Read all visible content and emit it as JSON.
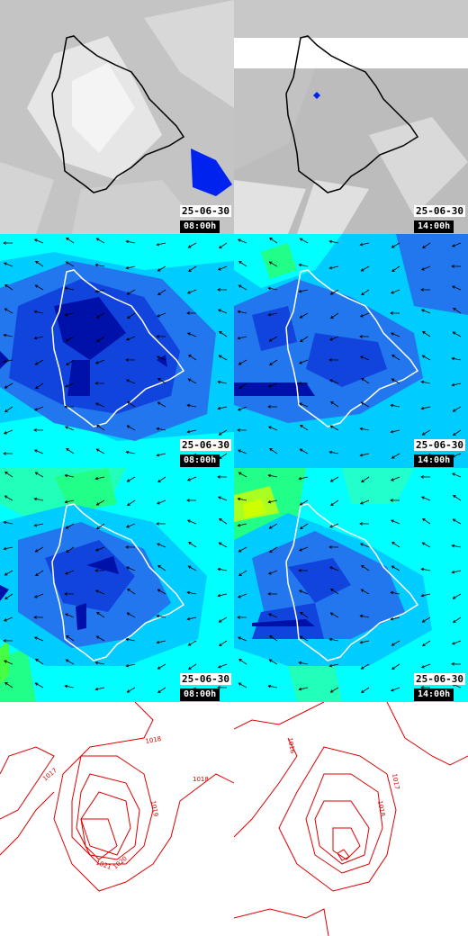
{
  "panels": [
    {
      "id": "cloud",
      "row": 0,
      "col": 0,
      "date": "25-06-30",
      "time": "08:00h"
    },
    {
      "id": "cloud",
      "row": 0,
      "col": 1,
      "date": "25-06-30",
      "time": "14:00h"
    },
    {
      "id": "wind1",
      "row": 1,
      "col": 0,
      "date": "25-06-30",
      "time": "08:00h"
    },
    {
      "id": "wind1",
      "row": 1,
      "col": 1,
      "date": "25-06-30",
      "time": "14:00h"
    },
    {
      "id": "wind2",
      "row": 2,
      "col": 0,
      "date": "25-06-30",
      "time": "08:00h"
    },
    {
      "id": "wind2",
      "row": 2,
      "col": 1,
      "date": "25-06-30",
      "time": "14:00h"
    },
    {
      "id": "pressure",
      "row": 3,
      "col": 0
    },
    {
      "id": "pressure",
      "row": 3,
      "col": 1
    }
  ],
  "pressure_labels_left": [
    "1016",
    "1017",
    "1018",
    "1019",
    "1020",
    "1021"
  ],
  "pressure_labels_right": [
    "1016",
    "1017",
    "1018"
  ],
  "colors": {
    "cloud_grey": "#bdbdbd",
    "cloud_light": "#eeeeee",
    "precip_blue": "#0022ee",
    "wind_cyan": "#00ffff",
    "wind_light_blue": "#00ccff",
    "wind_blue": "#2277ee",
    "wind_mid_blue": "#1144dd",
    "wind_dark_blue": "#0011aa",
    "wind_green": "#22ff88",
    "isobar_red": "#dd0000"
  }
}
